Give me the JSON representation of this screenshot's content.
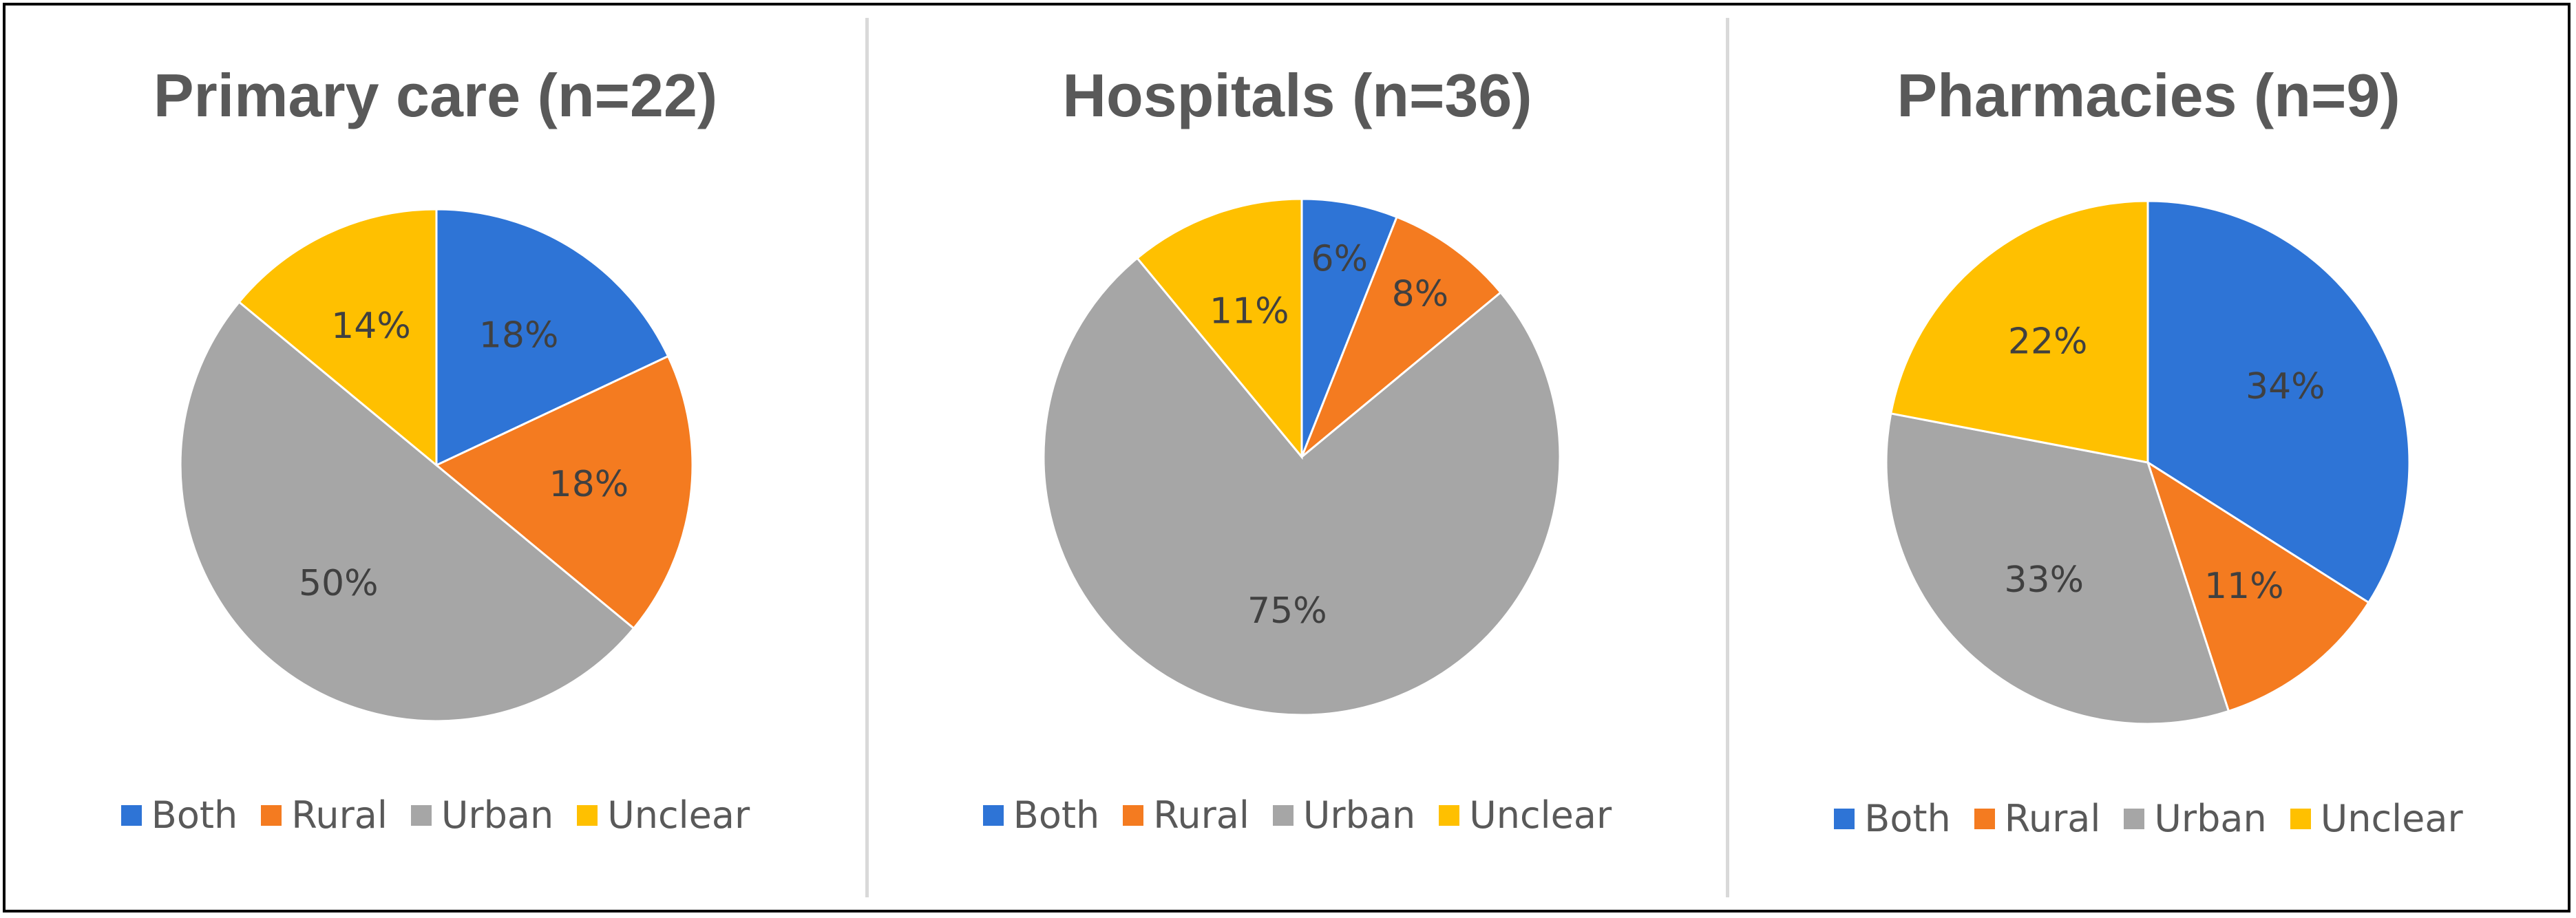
{
  "colors": {
    "Both": "#2e74d6",
    "Rural": "#f47b20",
    "Urban": "#a6a6a6",
    "Unclear": "#ffc000"
  },
  "chart_data": [
    {
      "type": "pie",
      "title": "Primary care (n=22)",
      "categories": [
        "Both",
        "Rural",
        "Urban",
        "Unclear"
      ],
      "values": [
        18,
        18,
        50,
        14
      ],
      "labels": [
        "18%",
        "18%",
        "50%",
        "14%"
      ],
      "legend_position": "bottom"
    },
    {
      "type": "pie",
      "title": "Hospitals (n=36)",
      "categories": [
        "Both",
        "Rural",
        "Urban",
        "Unclear"
      ],
      "values": [
        6,
        8,
        75,
        11
      ],
      "labels": [
        "6%",
        "8%",
        "75%",
        "11%"
      ],
      "legend_position": "bottom"
    },
    {
      "type": "pie",
      "title": "Pharmacies (n=9)",
      "categories": [
        "Both",
        "Rural",
        "Urban",
        "Unclear"
      ],
      "values": [
        34,
        11,
        33,
        22
      ],
      "labels": [
        "34%",
        "11%",
        "33%",
        "22%"
      ],
      "legend_position": "bottom"
    }
  ]
}
